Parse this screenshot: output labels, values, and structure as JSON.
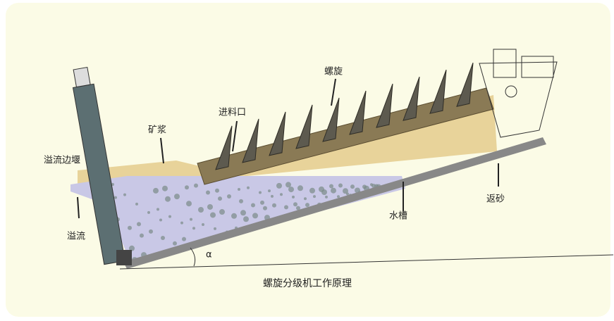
{
  "labels": {
    "spiral": "螺旋",
    "feed": "进料口",
    "slurry": "矿浆",
    "weir": "溢流边堰",
    "overflow": "溢流",
    "trough": "水槽",
    "return_sand": "返砂",
    "angle": "α"
  },
  "caption": "螺旋分级机工作原理"
}
